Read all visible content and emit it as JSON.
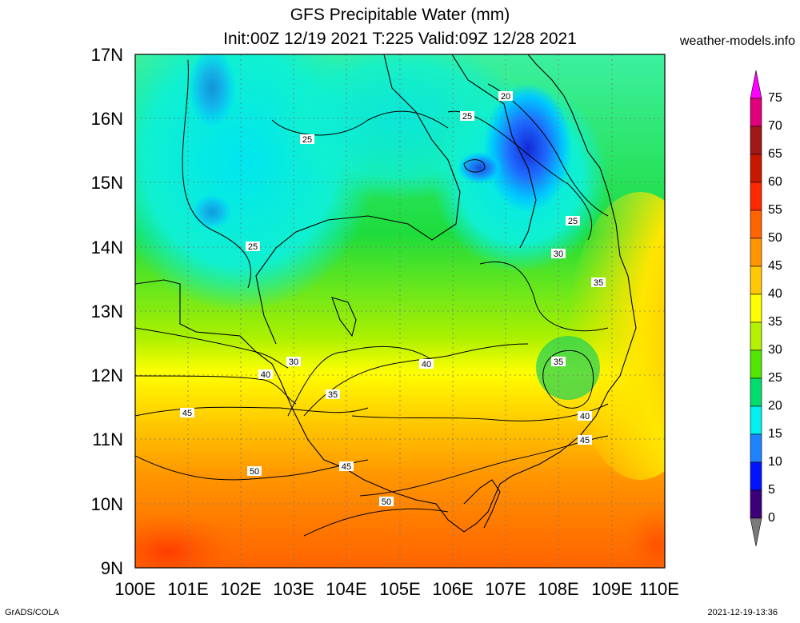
{
  "header": {
    "title_line1": "GFS Precipitable Water (mm)",
    "title_line2": "Init:00Z 12/19 2021 T:225 Valid:09Z 12/28 2021",
    "site": "weather-models.info"
  },
  "map": {
    "lat_labels": [
      "17N",
      "16N",
      "15N",
      "14N",
      "13N",
      "12N",
      "11N",
      "10N",
      "9N"
    ],
    "lon_labels": [
      "100E",
      "101E",
      "102E",
      "103E",
      "104E",
      "105E",
      "106E",
      "107E",
      "108E",
      "109E",
      "110E"
    ],
    "contour_labels": [
      "20",
      "25",
      "25",
      "25",
      "25",
      "30",
      "30",
      "35",
      "35",
      "35",
      "40",
      "40",
      "40",
      "45",
      "45",
      "45",
      "50",
      "50"
    ]
  },
  "colorbar": {
    "labels": [
      "75",
      "70",
      "65",
      "60",
      "55",
      "50",
      "45",
      "40",
      "35",
      "30",
      "25",
      "20",
      "15",
      "10",
      "5",
      "0"
    ],
    "colors": [
      "#ff00ff",
      "#e0007a",
      "#a01818",
      "#c81800",
      "#ff2800",
      "#ff6400",
      "#ff9600",
      "#ffc800",
      "#ffff00",
      "#b4f000",
      "#50e600",
      "#00dc6e",
      "#00f0f0",
      "#1e82ff",
      "#0014ff",
      "#3c0078",
      "#7a7a7a"
    ]
  },
  "footer": {
    "left": "GrADS/COLA",
    "right": "2021-12-19-13:36"
  }
}
